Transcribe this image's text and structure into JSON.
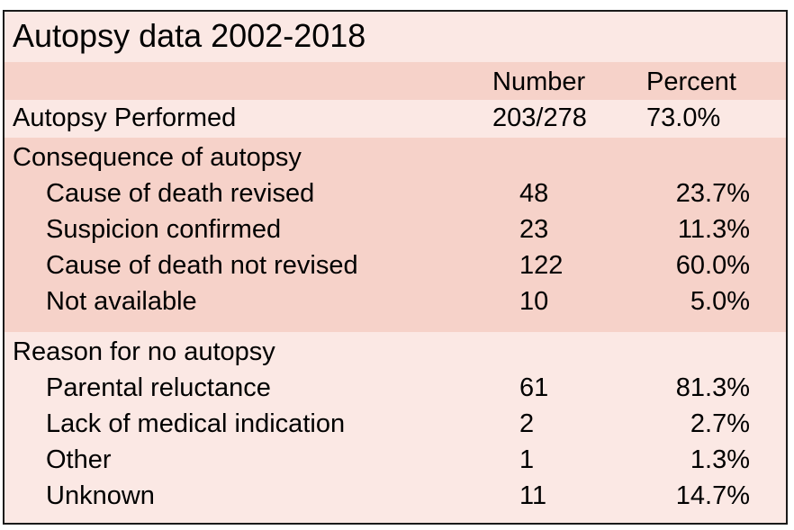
{
  "title": "Autopsy data 2002-2018",
  "headers": {
    "number": "Number",
    "percent": "Percent"
  },
  "performed": {
    "label": "Autopsy Performed",
    "number": "203/278",
    "percent": "73.0%"
  },
  "consequence": {
    "heading": "Consequence of autopsy",
    "rows": [
      {
        "label": "Cause of death revised",
        "number": "48",
        "percent": "23.7%"
      },
      {
        "label": "Suspicion confirmed",
        "number": "23",
        "percent": "11.3%"
      },
      {
        "label": "Cause of death not revised",
        "number": "122",
        "percent": "60.0%"
      },
      {
        "label": "Not available",
        "number": "10",
        "percent": "5.0%"
      }
    ]
  },
  "reason": {
    "heading": "Reason for no autopsy",
    "rows": [
      {
        "label": "Parental reluctance",
        "number": "61",
        "percent": "81.3%"
      },
      {
        "label": "Lack of medical indication",
        "number": "2",
        "percent": "2.7%"
      },
      {
        "label": "Other",
        "number": "1",
        "percent": "1.3%"
      },
      {
        "label": "Unknown",
        "number": "11",
        "percent": "14.7%"
      }
    ]
  },
  "colors": {
    "band": "#f6d2c9",
    "background": "#fbe8e4",
    "border": "#1a1a1a"
  }
}
